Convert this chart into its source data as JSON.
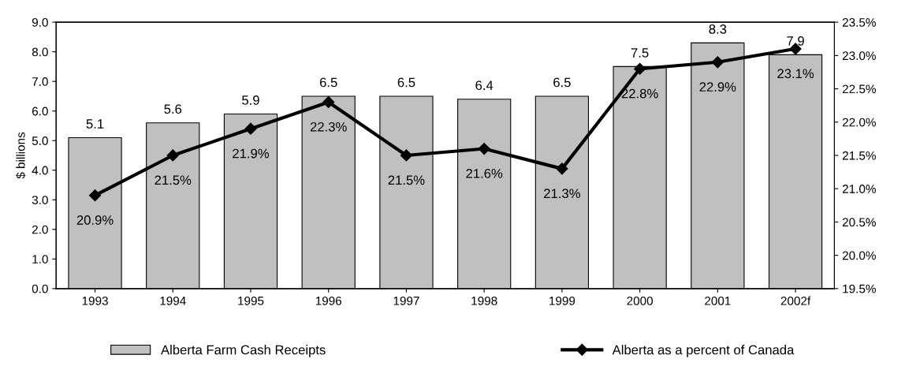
{
  "chart_data": {
    "type": "bar",
    "ylabel": "$ billions",
    "categories": [
      "1993",
      "1994",
      "1995",
      "1996",
      "1997",
      "1998",
      "1999",
      "2000",
      "2001",
      "2002f"
    ],
    "series": [
      {
        "name": "Alberta Farm Cash Receipts",
        "color": "#c0c0c0",
        "values": [
          5.1,
          5.6,
          5.9,
          6.5,
          6.5,
          6.4,
          6.5,
          7.5,
          8.3,
          7.9
        ],
        "value_labels": [
          "5.1",
          "5.6",
          "5.9",
          "6.5",
          "6.5",
          "6.4",
          "6.5",
          "7.5",
          "8.3",
          "7.9"
        ]
      },
      {
        "name": "Alberta as a percent of Canada",
        "type": "line",
        "axis": "y2",
        "color": "#000000",
        "marker": "diamond",
        "values": [
          20.9,
          21.5,
          21.9,
          22.3,
          21.5,
          21.6,
          21.3,
          22.8,
          22.9,
          23.1
        ],
        "value_labels": [
          "20.9%",
          "21.5%",
          "21.9%",
          "22.3%",
          "21.5%",
          "21.6%",
          "21.3%",
          "22.8%",
          "22.9%",
          "23.1%"
        ]
      }
    ],
    "ylim": [
      0,
      9
    ],
    "yticks": [
      {
        "value": 0,
        "label": "0.0"
      },
      {
        "value": 1,
        "label": "1.0"
      },
      {
        "value": 2,
        "label": "2.0"
      },
      {
        "value": 3,
        "label": "3.0"
      },
      {
        "value": 4,
        "label": "4.0"
      },
      {
        "value": 5,
        "label": "5.0"
      },
      {
        "value": 6,
        "label": "6.0"
      },
      {
        "value": 7,
        "label": "7.0"
      },
      {
        "value": 8,
        "label": "8.0"
      },
      {
        "value": 9,
        "label": "9.0"
      }
    ],
    "y2lim": [
      19.5,
      23.5
    ],
    "y2ticks": [
      {
        "value": 19.5,
        "label": "19.5%"
      },
      {
        "value": 20,
        "label": "20.0%"
      },
      {
        "value": 20.5,
        "label": "20.5%"
      },
      {
        "value": 21,
        "label": "21.0%"
      },
      {
        "value": 21.5,
        "label": "21.5%"
      },
      {
        "value": 22,
        "label": "22.0%"
      },
      {
        "value": 22.5,
        "label": "22.5%"
      },
      {
        "value": 23,
        "label": "23.0%"
      },
      {
        "value": 23.5,
        "label": "23.5%"
      }
    ],
    "grid": false,
    "legend": "bottom",
    "line_style": "solid"
  }
}
